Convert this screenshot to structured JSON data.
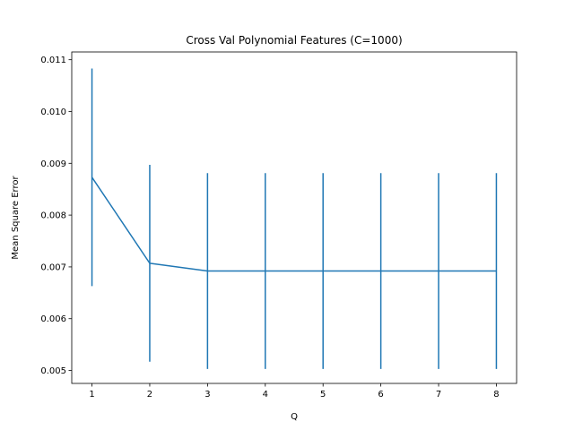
{
  "chart_data": {
    "type": "line",
    "title": "Cross Val Polynomial Features (C=1000)",
    "xlabel": "Q",
    "ylabel": "Mean Square Error",
    "x": [
      1,
      2,
      3,
      4,
      5,
      6,
      7,
      8
    ],
    "xticks": [
      "1",
      "2",
      "3",
      "4",
      "5",
      "6",
      "7",
      "8"
    ],
    "yticks": [
      "0.005",
      "0.006",
      "0.007",
      "0.008",
      "0.009",
      "0.010",
      "0.011"
    ],
    "ytick_values": [
      0.005,
      0.006,
      0.007,
      0.008,
      0.009,
      0.01,
      0.011
    ],
    "xlim": [
      0.65,
      8.35
    ],
    "ylim": [
      0.00475,
      0.01115
    ],
    "grid": false,
    "series": [
      {
        "values": [
          0.00873,
          0.00707,
          0.00692,
          0.00692,
          0.00692,
          0.00692,
          0.00692,
          0.00692
        ],
        "error": [
          0.0021,
          0.0019,
          0.00189,
          0.00189,
          0.00189,
          0.00189,
          0.00189,
          0.00189
        ],
        "color": "#1f77b4"
      }
    ]
  }
}
